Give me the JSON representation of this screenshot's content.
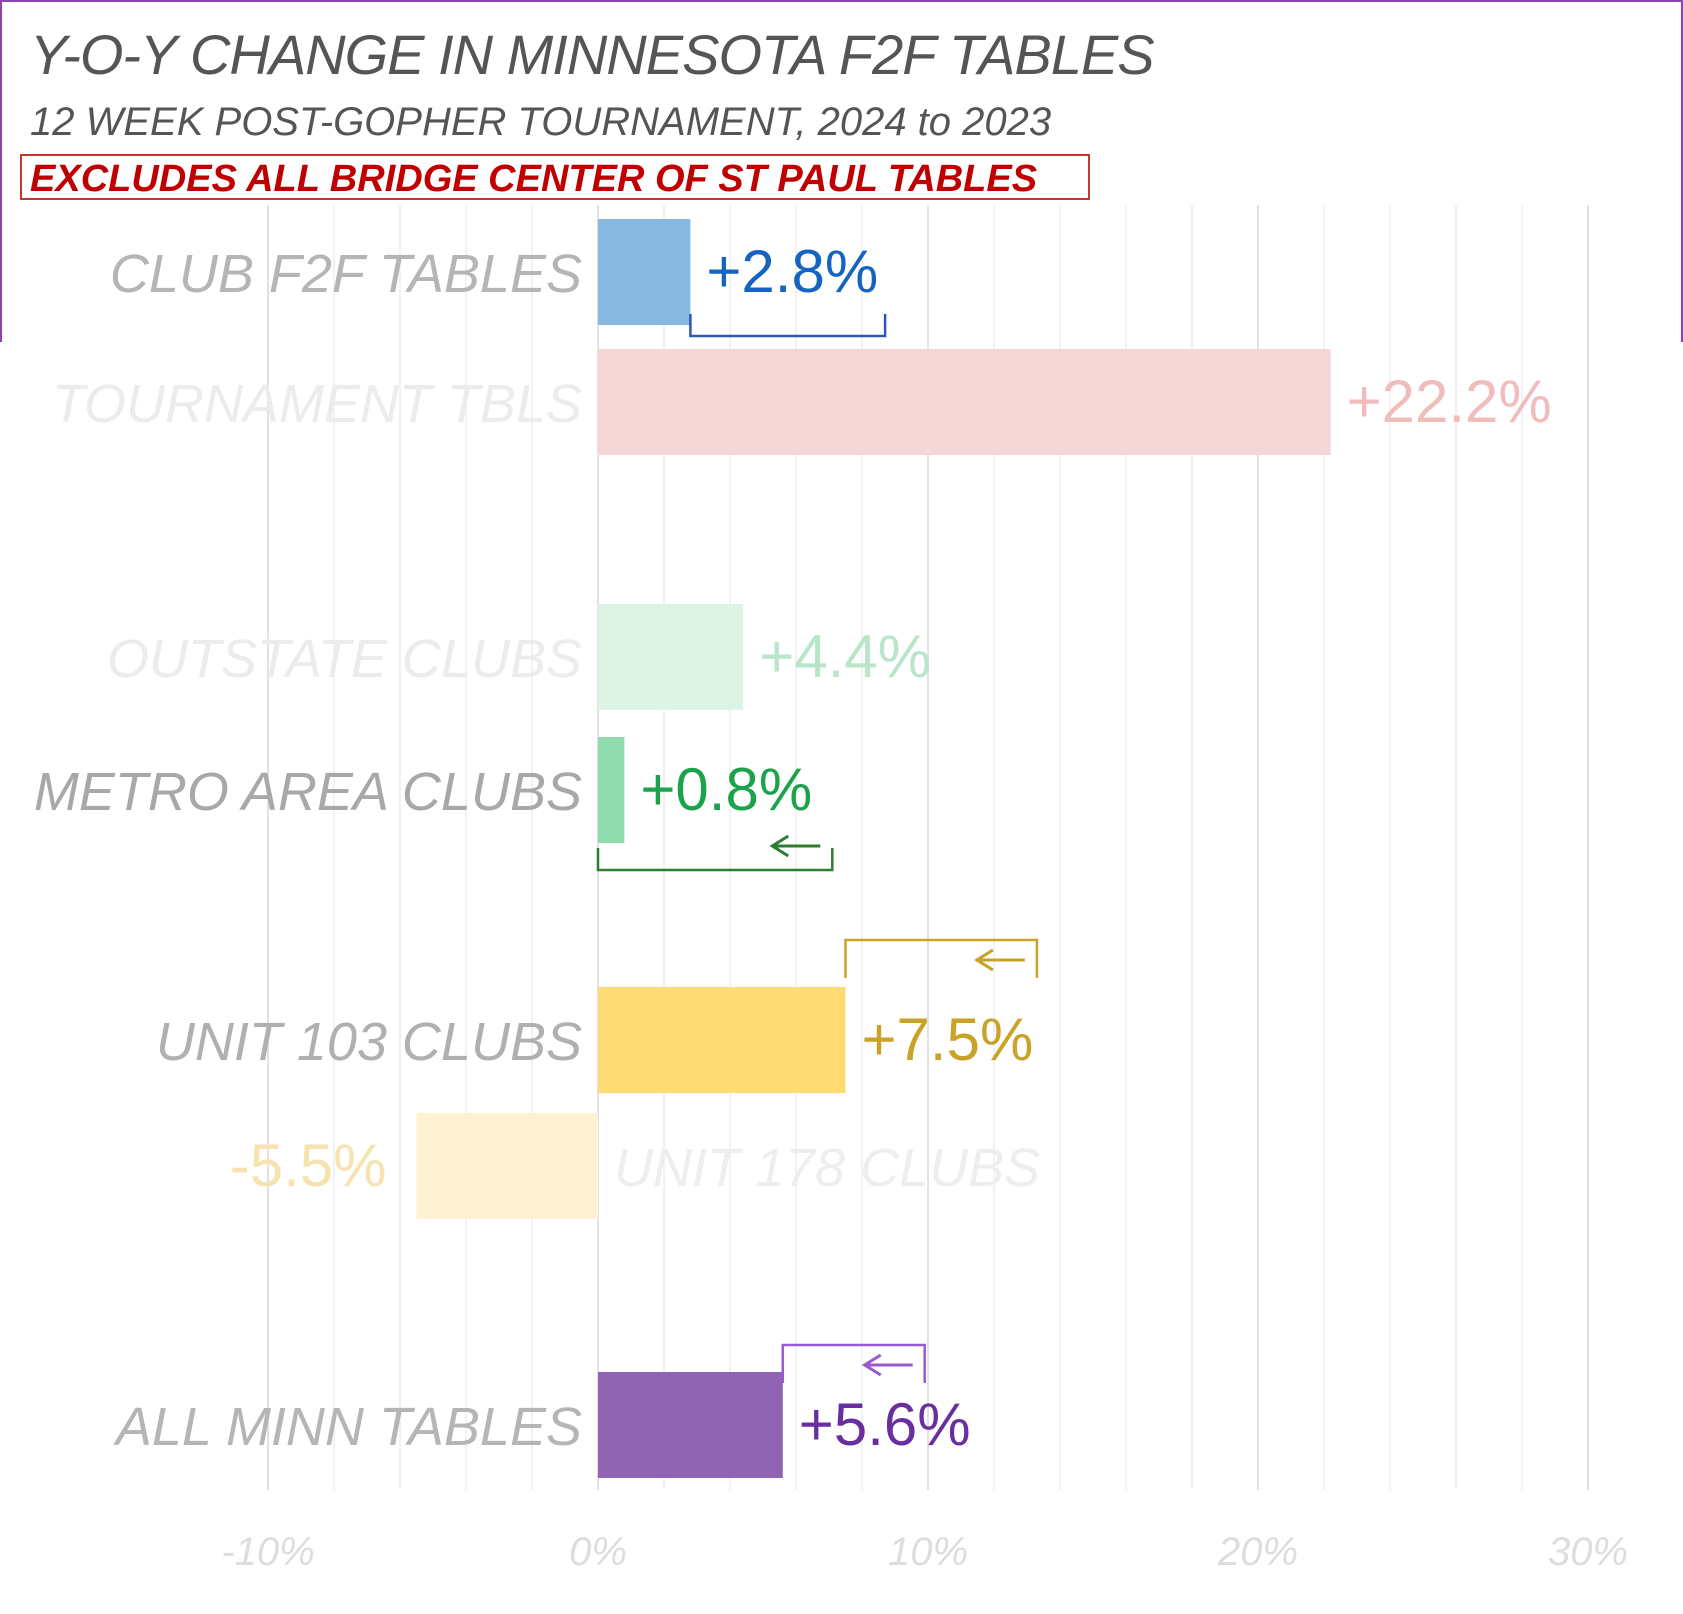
{
  "title": "Y-O-Y CHANGE IN MINNESOTA F2F TABLES",
  "subtitle": "12 WEEK POST-GOPHER TOURNAMENT, 2024 to 2023",
  "note": "EXCLUDES ALL BRIDGE CENTER OF ST PAUL TABLES",
  "chart_data": {
    "type": "bar",
    "orientation": "horizontal",
    "title": "Y-O-Y CHANGE IN MINNESOTA F2F TABLES",
    "subtitle": "12 WEEK POST-GOPHER TOURNAMENT, 2024 to 2023",
    "xlim": [
      -10,
      30
    ],
    "x_ticks": [
      "-10%",
      "0%",
      "10%",
      "20%",
      "30%"
    ],
    "grid": true,
    "categories": [
      "CLUB F2F TABLES",
      "TOURNAMENT TBLS",
      "OUTSTATE CLUBS",
      "METRO AREA CLUBS",
      "UNIT 103 CLUBS",
      "UNIT 178 CLUBS",
      "ALL MINN TABLES"
    ],
    "values": [
      2.8,
      22.2,
      4.4,
      0.8,
      7.5,
      -5.5,
      5.6
    ],
    "value_labels": [
      "+2.8%",
      "+22.2%",
      "+4.4%",
      "+0.8%",
      "+7.5%",
      "-5.5%",
      "+5.6%"
    ],
    "colors": {
      "bar": [
        "#87b9e0",
        "#f5d5d5",
        "#ddf3e6",
        "#8fdbae",
        "#ffdc73",
        "#fef2d2",
        "#9063b3"
      ],
      "label": [
        "#1565c0",
        "#f0bcbc",
        "#b9e5c9",
        "#1aa34a",
        "#c9a227",
        "#f7e3b0",
        "#6a2f9e"
      ],
      "category": [
        "#b5b5b5",
        "#ececec",
        "#ececec",
        "#a8a8a8",
        "#b0b0b0",
        "#eeeeee",
        "#b5b5b5"
      ],
      "brackets": [
        "#2f55b8",
        "#2e7d32",
        "#c9a227",
        "#9b59d0"
      ],
      "note_text": "#c00000",
      "note_border": "#c0392b",
      "tick_text": "#dddddd",
      "grid": "#ededed"
    },
    "annotations": [
      {
        "series": "CLUB F2F TABLES",
        "type": "bracket",
        "from": 2.8,
        "to": 8.7,
        "arrow": false
      },
      {
        "series": "METRO AREA CLUBS",
        "type": "bracket",
        "from": 0,
        "to": 7.1,
        "arrow": "left"
      },
      {
        "series": "UNIT 103 CLUBS",
        "type": "bracket",
        "from": 7.5,
        "to": 13.3,
        "arrow": "left"
      },
      {
        "series": "ALL MINN TABLES",
        "type": "bracket",
        "from": 5.6,
        "to": 9.9,
        "arrow": "left"
      }
    ]
  }
}
